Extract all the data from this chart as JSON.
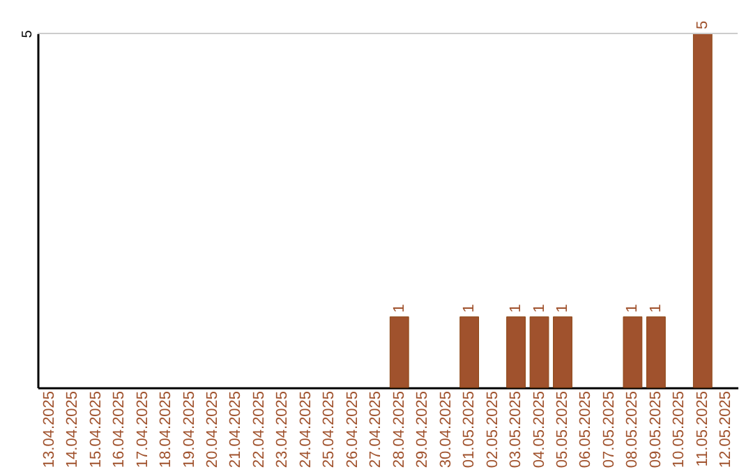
{
  "chart_data": {
    "type": "bar",
    "categories": [
      "13.04.2025",
      "14.04.2025",
      "15.04.2025",
      "16.04.2025",
      "17.04.2025",
      "18.04.2025",
      "19.04.2025",
      "20.04.2025",
      "21.04.2025",
      "22.04.2025",
      "23.04.2025",
      "24.04.2025",
      "25.04.2025",
      "26.04.2025",
      "27.04.2025",
      "28.04.2025",
      "29.04.2025",
      "30.04.2025",
      "01.05.2025",
      "02.05.2025",
      "03.05.2025",
      "04.05.2025",
      "05.05.2025",
      "06.05.2025",
      "07.05.2025",
      "08.05.2025",
      "09.05.2025",
      "10.05.2025",
      "11.05.2025",
      "12.05.2025"
    ],
    "values": [
      null,
      null,
      null,
      null,
      null,
      null,
      null,
      null,
      null,
      null,
      null,
      null,
      null,
      null,
      null,
      1,
      null,
      null,
      1,
      null,
      1,
      1,
      1,
      null,
      null,
      1,
      1,
      null,
      5,
      null
    ],
    "value_labels": [
      null,
      null,
      null,
      null,
      null,
      null,
      null,
      null,
      null,
      null,
      null,
      null,
      null,
      null,
      null,
      "1",
      null,
      null,
      "1",
      null,
      "1",
      "1",
      "1",
      null,
      null,
      "1",
      "1",
      null,
      "5",
      null
    ],
    "color": "#a0522d",
    "ylim": [
      0,
      5
    ],
    "yticks": [
      5
    ],
    "ref_lines": [
      {
        "axis": "y",
        "value": 5,
        "color": "#cccccc"
      }
    ]
  }
}
